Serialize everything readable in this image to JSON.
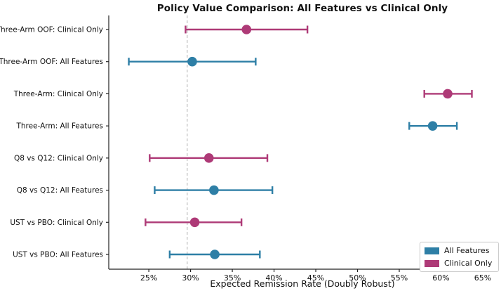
{
  "title": "Policy Value Comparison: All Features vs Clinical Only",
  "colors": {
    "all_features": "#2e7fa6",
    "clinical_only": "#ae3a77",
    "reference_line": "#bbbbbb",
    "axis": "#222222",
    "text": "#111111"
  },
  "chart_data": {
    "type": "scatter",
    "subtype": "horizontal-dot-plot-with-error-bars",
    "title": "Policy Value Comparison: All Features vs Clinical Only",
    "xlabel": "Expected Remission Rate (Doubly Robust)",
    "ylabel": "",
    "xlim": [
      20.2,
      66.6
    ],
    "x_ticks": [
      25,
      30,
      35,
      40,
      45,
      50,
      55,
      60,
      65
    ],
    "x_tick_suffix": "%",
    "grid": false,
    "reference_line_x": 29.6,
    "series_colors": {
      "All Features": "#2e7fa6",
      "Clinical Only": "#ae3a77"
    },
    "rows": [
      {
        "label": "Three-Arm OOF: Clinical Only",
        "series": "Clinical Only",
        "value": 36.7,
        "ci_low": 29.4,
        "ci_high": 44.0
      },
      {
        "label": "Three-Arm OOF: All Features",
        "series": "All Features",
        "value": 30.2,
        "ci_low": 22.6,
        "ci_high": 37.8
      },
      {
        "label": "Three-Arm: Clinical Only",
        "series": "Clinical Only",
        "value": 60.8,
        "ci_low": 58.0,
        "ci_high": 63.7
      },
      {
        "label": "Three-Arm: All Features",
        "series": "All Features",
        "value": 59.0,
        "ci_low": 56.2,
        "ci_high": 61.9
      },
      {
        "label": "Q8 vs Q12: Clinical Only",
        "series": "Clinical Only",
        "value": 32.2,
        "ci_low": 25.1,
        "ci_high": 39.2
      },
      {
        "label": "Q8 vs Q12: All Features",
        "series": "All Features",
        "value": 32.8,
        "ci_low": 25.7,
        "ci_high": 39.8
      },
      {
        "label": "UST vs PBO: Clinical Only",
        "series": "Clinical Only",
        "value": 30.5,
        "ci_low": 24.6,
        "ci_high": 36.1
      },
      {
        "label": "UST vs PBO: All Features",
        "series": "All Features",
        "value": 32.9,
        "ci_low": 27.5,
        "ci_high": 38.3
      }
    ],
    "legend": {
      "position": "lower right",
      "entries": [
        {
          "label": "All Features",
          "series": "All Features"
        },
        {
          "label": "Clinical Only",
          "series": "Clinical Only"
        }
      ]
    }
  }
}
